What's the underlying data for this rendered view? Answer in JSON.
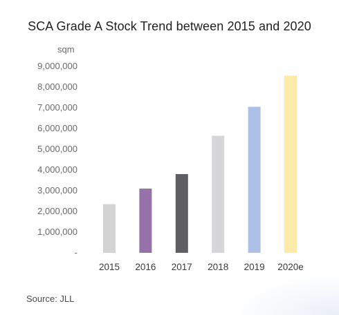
{
  "chart_data": {
    "type": "bar",
    "title": "SCA Grade A Stock Trend between 2015 and 2020",
    "ylabel": "sqm",
    "xlabel": "",
    "categories": [
      "2015",
      "2016",
      "2017",
      "2018",
      "2019",
      "2020e"
    ],
    "values": [
      2350000,
      3100000,
      3800000,
      5650000,
      7050000,
      8550000
    ],
    "ylim": [
      0,
      9000000
    ],
    "yticks": [
      0,
      1000000,
      2000000,
      3000000,
      4000000,
      5000000,
      6000000,
      7000000,
      8000000,
      9000000
    ],
    "ytick_labels": [
      "-",
      "1,000,000",
      "2,000,000",
      "3,000,000",
      "4,000,000",
      "5,000,000",
      "6,000,000",
      "7,000,000",
      "8,000,000",
      "9,000,000"
    ],
    "bar_colors": [
      "#d3d3d3",
      "#9672ab",
      "#5f5f63",
      "#d6d6d8",
      "#aec0e6",
      "#fde9a8"
    ],
    "grid": false,
    "legend": "none"
  },
  "source": "Source: JLL"
}
